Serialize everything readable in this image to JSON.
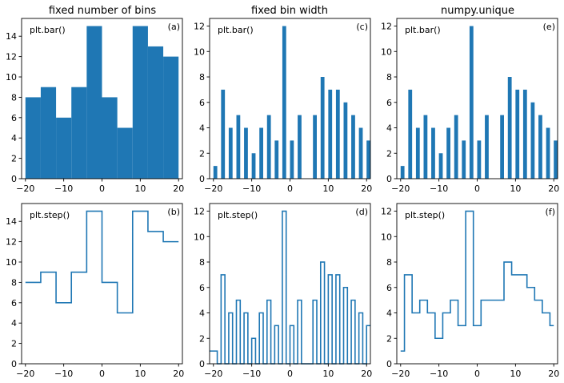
{
  "figure": {
    "column_titles": [
      "fixed number of bins",
      "fixed bin width",
      "numpy.unique"
    ],
    "bar_color": "#1f77b4",
    "step_color": "#1f77b4"
  },
  "chart_data": [
    {
      "id": "a",
      "panel_label": "(a)",
      "method_label": "plt.bar()",
      "type": "bar",
      "title": "fixed number of bins",
      "xlim": [
        -21,
        21
      ],
      "ylim": [
        0,
        15.75
      ],
      "xticks": [
        -20,
        -10,
        0,
        10,
        20
      ],
      "yticks": [
        0,
        2,
        4,
        6,
        8,
        10,
        12,
        14
      ],
      "bins": [
        {
          "x0": -20,
          "x1": -16,
          "y": 8
        },
        {
          "x0": -16,
          "x1": -12,
          "y": 9
        },
        {
          "x0": -12,
          "x1": -8,
          "y": 6
        },
        {
          "x0": -8,
          "x1": -4,
          "y": 9
        },
        {
          "x0": -4,
          "x1": 0,
          "y": 15
        },
        {
          "x0": 0,
          "x1": 4,
          "y": 8
        },
        {
          "x0": 4,
          "x1": 8,
          "y": 5
        },
        {
          "x0": 8,
          "x1": 12,
          "y": 15
        },
        {
          "x0": 12,
          "x1": 16,
          "y": 13
        },
        {
          "x0": 16,
          "x1": 20,
          "y": 12
        }
      ]
    },
    {
      "id": "c",
      "panel_label": "(c)",
      "method_label": "plt.bar()",
      "type": "bar",
      "title": "fixed bin width",
      "xlim": [
        -21,
        21
      ],
      "ylim": [
        0,
        12.6
      ],
      "xticks": [
        -20,
        -10,
        0,
        10,
        20
      ],
      "yticks": [
        0,
        2,
        4,
        6,
        8,
        10,
        12
      ],
      "bins": [
        {
          "x0": -20,
          "x1": -19,
          "y": 1
        },
        {
          "x0": -18,
          "x1": -17,
          "y": 7
        },
        {
          "x0": -16,
          "x1": -15,
          "y": 4
        },
        {
          "x0": -14,
          "x1": -13,
          "y": 5
        },
        {
          "x0": -12,
          "x1": -11,
          "y": 4
        },
        {
          "x0": -10,
          "x1": -9,
          "y": 2
        },
        {
          "x0": -8,
          "x1": -7,
          "y": 4
        },
        {
          "x0": -6,
          "x1": -5,
          "y": 5
        },
        {
          "x0": -4,
          "x1": -3,
          "y": 3
        },
        {
          "x0": -2,
          "x1": -1,
          "y": 12
        },
        {
          "x0": 0,
          "x1": 1,
          "y": 3
        },
        {
          "x0": 2,
          "x1": 3,
          "y": 5
        },
        {
          "x0": 6,
          "x1": 7,
          "y": 5
        },
        {
          "x0": 8,
          "x1": 9,
          "y": 8
        },
        {
          "x0": 10,
          "x1": 11,
          "y": 7
        },
        {
          "x0": 12,
          "x1": 13,
          "y": 7
        },
        {
          "x0": 14,
          "x1": 15,
          "y": 6
        },
        {
          "x0": 16,
          "x1": 17,
          "y": 5
        },
        {
          "x0": 18,
          "x1": 19,
          "y": 4
        },
        {
          "x0": 20,
          "x1": 21,
          "y": 3
        }
      ]
    },
    {
      "id": "e",
      "panel_label": "(e)",
      "method_label": "plt.bar()",
      "type": "bar",
      "title": "numpy.unique",
      "xlim": [
        -21,
        21
      ],
      "ylim": [
        0,
        12.6
      ],
      "xticks": [
        -20,
        -10,
        0,
        10,
        20
      ],
      "yticks": [
        0,
        2,
        4,
        6,
        8,
        10,
        12
      ],
      "bins": [
        {
          "x0": -20,
          "x1": -19,
          "y": 1
        },
        {
          "x0": -18,
          "x1": -17,
          "y": 7
        },
        {
          "x0": -16,
          "x1": -15,
          "y": 4
        },
        {
          "x0": -14,
          "x1": -13,
          "y": 5
        },
        {
          "x0": -12,
          "x1": -11,
          "y": 4
        },
        {
          "x0": -10,
          "x1": -9,
          "y": 2
        },
        {
          "x0": -8,
          "x1": -7,
          "y": 4
        },
        {
          "x0": -6,
          "x1": -5,
          "y": 5
        },
        {
          "x0": -4,
          "x1": -3,
          "y": 3
        },
        {
          "x0": -2,
          "x1": -1,
          "y": 12
        },
        {
          "x0": 0,
          "x1": 1,
          "y": 3
        },
        {
          "x0": 2,
          "x1": 3,
          "y": 5
        },
        {
          "x0": 6,
          "x1": 7,
          "y": 5
        },
        {
          "x0": 8,
          "x1": 9,
          "y": 8
        },
        {
          "x0": 10,
          "x1": 11,
          "y": 7
        },
        {
          "x0": 12,
          "x1": 13,
          "y": 7
        },
        {
          "x0": 14,
          "x1": 15,
          "y": 6
        },
        {
          "x0": 16,
          "x1": 17,
          "y": 5
        },
        {
          "x0": 18,
          "x1": 19,
          "y": 4
        },
        {
          "x0": 20,
          "x1": 21,
          "y": 3
        }
      ]
    },
    {
      "id": "b",
      "panel_label": "(b)",
      "method_label": "plt.step()",
      "type": "line",
      "xlim": [
        -21,
        21
      ],
      "ylim": [
        0,
        15.75
      ],
      "xticks": [
        -20,
        -10,
        0,
        10,
        20
      ],
      "yticks": [
        0,
        2,
        4,
        6,
        8,
        10,
        12,
        14
      ],
      "points": [
        [
          -20,
          8
        ],
        [
          -16,
          8
        ],
        [
          -16,
          9
        ],
        [
          -12,
          9
        ],
        [
          -12,
          6
        ],
        [
          -8,
          6
        ],
        [
          -8,
          9
        ],
        [
          -4,
          9
        ],
        [
          -4,
          15
        ],
        [
          0,
          15
        ],
        [
          0,
          8
        ],
        [
          4,
          8
        ],
        [
          4,
          5
        ],
        [
          8,
          5
        ],
        [
          8,
          15
        ],
        [
          12,
          15
        ],
        [
          12,
          13
        ],
        [
          16,
          13
        ],
        [
          16,
          12
        ],
        [
          20,
          12
        ]
      ]
    },
    {
      "id": "d",
      "panel_label": "(d)",
      "method_label": "plt.step()",
      "type": "line",
      "xlim": [
        -21,
        21
      ],
      "ylim": [
        0,
        12.6
      ],
      "xticks": [
        -20,
        -10,
        0,
        10,
        20
      ],
      "yticks": [
        0,
        2,
        4,
        6,
        8,
        10,
        12
      ],
      "points": [
        [
          -21,
          1
        ],
        [
          -19,
          1
        ],
        [
          -19,
          0
        ],
        [
          -18,
          0
        ],
        [
          -18,
          7
        ],
        [
          -17,
          7
        ],
        [
          -17,
          0
        ],
        [
          -16,
          0
        ],
        [
          -16,
          4
        ],
        [
          -15,
          4
        ],
        [
          -15,
          0
        ],
        [
          -14,
          0
        ],
        [
          -14,
          5
        ],
        [
          -13,
          5
        ],
        [
          -13,
          0
        ],
        [
          -12,
          0
        ],
        [
          -12,
          4
        ],
        [
          -11,
          4
        ],
        [
          -11,
          0
        ],
        [
          -10,
          0
        ],
        [
          -10,
          2
        ],
        [
          -9,
          2
        ],
        [
          -9,
          0
        ],
        [
          -8,
          0
        ],
        [
          -8,
          4
        ],
        [
          -7,
          4
        ],
        [
          -7,
          0
        ],
        [
          -6,
          0
        ],
        [
          -6,
          5
        ],
        [
          -5,
          5
        ],
        [
          -5,
          0
        ],
        [
          -4,
          0
        ],
        [
          -4,
          3
        ],
        [
          -3,
          3
        ],
        [
          -3,
          0
        ],
        [
          -2,
          0
        ],
        [
          -2,
          12
        ],
        [
          -1,
          12
        ],
        [
          -1,
          0
        ],
        [
          0,
          0
        ],
        [
          0,
          3
        ],
        [
          1,
          3
        ],
        [
          1,
          0
        ],
        [
          2,
          0
        ],
        [
          2,
          5
        ],
        [
          3,
          5
        ],
        [
          3,
          0
        ],
        [
          6,
          0
        ],
        [
          6,
          5
        ],
        [
          7,
          5
        ],
        [
          7,
          0
        ],
        [
          8,
          0
        ],
        [
          8,
          8
        ],
        [
          9,
          8
        ],
        [
          9,
          0
        ],
        [
          10,
          0
        ],
        [
          10,
          7
        ],
        [
          11,
          7
        ],
        [
          11,
          0
        ],
        [
          12,
          0
        ],
        [
          12,
          7
        ],
        [
          13,
          7
        ],
        [
          13,
          0
        ],
        [
          14,
          0
        ],
        [
          14,
          6
        ],
        [
          15,
          6
        ],
        [
          15,
          0
        ],
        [
          16,
          0
        ],
        [
          16,
          5
        ],
        [
          17,
          5
        ],
        [
          17,
          0
        ],
        [
          18,
          0
        ],
        [
          18,
          4
        ],
        [
          19,
          4
        ],
        [
          19,
          0
        ],
        [
          20,
          0
        ],
        [
          20,
          3
        ],
        [
          21,
          3
        ]
      ]
    },
    {
      "id": "f",
      "panel_label": "(f)",
      "method_label": "plt.step()",
      "type": "line",
      "xlim": [
        -21,
        21
      ],
      "ylim": [
        0,
        12.6
      ],
      "xticks": [
        -20,
        -10,
        0,
        10,
        20
      ],
      "yticks": [
        0,
        2,
        4,
        6,
        8,
        10,
        12
      ],
      "points": [
        [
          -20,
          1
        ],
        [
          -19,
          1
        ],
        [
          -19,
          7
        ],
        [
          -17,
          7
        ],
        [
          -17,
          4
        ],
        [
          -15,
          4
        ],
        [
          -15,
          5
        ],
        [
          -13,
          5
        ],
        [
          -13,
          4
        ],
        [
          -11,
          4
        ],
        [
          -11,
          2
        ],
        [
          -9,
          2
        ],
        [
          -9,
          4
        ],
        [
          -7,
          4
        ],
        [
          -7,
          5
        ],
        [
          -5,
          5
        ],
        [
          -5,
          3
        ],
        [
          -3,
          3
        ],
        [
          -3,
          12
        ],
        [
          -1,
          12
        ],
        [
          -1,
          3
        ],
        [
          1,
          3
        ],
        [
          1,
          5
        ],
        [
          7,
          5
        ],
        [
          7,
          8
        ],
        [
          9,
          8
        ],
        [
          9,
          7
        ],
        [
          13,
          7
        ],
        [
          13,
          6
        ],
        [
          15,
          6
        ],
        [
          15,
          5
        ],
        [
          17,
          5
        ],
        [
          17,
          4
        ],
        [
          19,
          4
        ],
        [
          19,
          3
        ],
        [
          20,
          3
        ]
      ]
    }
  ]
}
